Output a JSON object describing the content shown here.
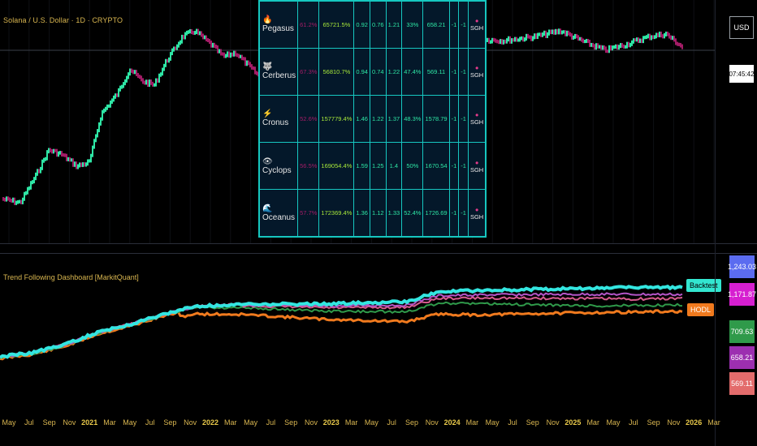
{
  "header": {
    "symbol_title": "Solana / U.S. Dollar · 1D · CRYPTO",
    "currency": "USD",
    "countdown": "07:45:42"
  },
  "indicator": {
    "title": "Trend Following Dashboard [MarkitQuant]",
    "labels": {
      "backtest": "Backtest",
      "hodl": "HODL"
    }
  },
  "price_scale": [
    {
      "label": "1,243.03",
      "color": "#5b6cf0"
    },
    {
      "label": "1,171.87",
      "color": "#d61fd0"
    },
    {
      "label": "709.63",
      "color": "#2f9a4a"
    },
    {
      "label": "658.21",
      "color": "#9c2fb0"
    },
    {
      "label": "569.11",
      "color": "#e36c6c"
    }
  ],
  "dashboard": {
    "rows": [
      {
        "icon": "flame-icon",
        "glyph": "🔥",
        "name": "Pegasus",
        "pct": "61.2%",
        "ret": "65721.5%",
        "v1": "0.92",
        "v2": "0.76",
        "v3": "1.21",
        "v4": "33%",
        "v5": "658.21",
        "v6": "-1",
        "v7": "-1",
        "sig": "SGH"
      },
      {
        "icon": "wolf-icon",
        "glyph": "🐺",
        "name": "Cerberus",
        "pct": "67.3%",
        "ret": "56810.7%",
        "v1": "0.94",
        "v2": "0.74",
        "v3": "1.22",
        "v4": "47.4%",
        "v5": "569.11",
        "v6": "-1",
        "v7": "-1",
        "sig": "SGH"
      },
      {
        "icon": "lightning-icon",
        "glyph": "⚡",
        "name": "Cronus",
        "pct": "52.6%",
        "ret": "157779.4%",
        "v1": "1.46",
        "v2": "1.22",
        "v3": "1.37",
        "v4": "48.3%",
        "v5": "1578.79",
        "v6": "-1",
        "v7": "-1",
        "sig": "SGH"
      },
      {
        "icon": "eye-icon",
        "glyph": "👁",
        "name": "Cyclops",
        "pct": "56.5%",
        "ret": "169054.4%",
        "v1": "1.59",
        "v2": "1.25",
        "v3": "1.4",
        "v4": "50%",
        "v5": "1670.54",
        "v6": "-1",
        "v7": "-1",
        "sig": "SGH"
      },
      {
        "icon": "wave-icon",
        "glyph": "🌊",
        "name": "Oceanus",
        "pct": "57.7%",
        "ret": "172369.4%",
        "v1": "1.36",
        "v2": "1.12",
        "v3": "1.33",
        "v4": "52.4%",
        "v5": "1726.69",
        "v6": "-1",
        "v7": "-1",
        "sig": "SGH"
      }
    ]
  },
  "time_axis": [
    {
      "label": "May",
      "major": false
    },
    {
      "label": "Jul",
      "major": false
    },
    {
      "label": "Sep",
      "major": false
    },
    {
      "label": "Nov",
      "major": false
    },
    {
      "label": "2021",
      "major": true
    },
    {
      "label": "Mar",
      "major": false
    },
    {
      "label": "May",
      "major": false
    },
    {
      "label": "Jul",
      "major": false
    },
    {
      "label": "Sep",
      "major": false
    },
    {
      "label": "Nov",
      "major": false
    },
    {
      "label": "2022",
      "major": true
    },
    {
      "label": "Mar",
      "major": false
    },
    {
      "label": "May",
      "major": false
    },
    {
      "label": "Jul",
      "major": false
    },
    {
      "label": "Sep",
      "major": false
    },
    {
      "label": "Nov",
      "major": false
    },
    {
      "label": "2023",
      "major": true
    },
    {
      "label": "Mar",
      "major": false
    },
    {
      "label": "May",
      "major": false
    },
    {
      "label": "Jul",
      "major": false
    },
    {
      "label": "Sep",
      "major": false
    },
    {
      "label": "Nov",
      "major": false
    },
    {
      "label": "2024",
      "major": true
    },
    {
      "label": "Mar",
      "major": false
    },
    {
      "label": "May",
      "major": false
    },
    {
      "label": "Jul",
      "major": false
    },
    {
      "label": "Sep",
      "major": false
    },
    {
      "label": "Nov",
      "major": false
    },
    {
      "label": "2025",
      "major": true
    },
    {
      "label": "Mar",
      "major": false
    },
    {
      "label": "May",
      "major": false
    },
    {
      "label": "Jul",
      "major": false
    },
    {
      "label": "Sep",
      "major": false
    },
    {
      "label": "Nov",
      "major": false
    },
    {
      "label": "2026",
      "major": true
    },
    {
      "label": "Mar",
      "major": false
    }
  ],
  "colors": {
    "bull": "#2ee6a5",
    "bear": "#a31c66",
    "equity_cyan": "#33e6e0",
    "equity_orange": "#f07a1e",
    "equity_green": "#2f9a4a",
    "equity_purple": "#b455c8",
    "equity_pink": "#d65b8e",
    "table_border": "#16c7c0"
  }
}
